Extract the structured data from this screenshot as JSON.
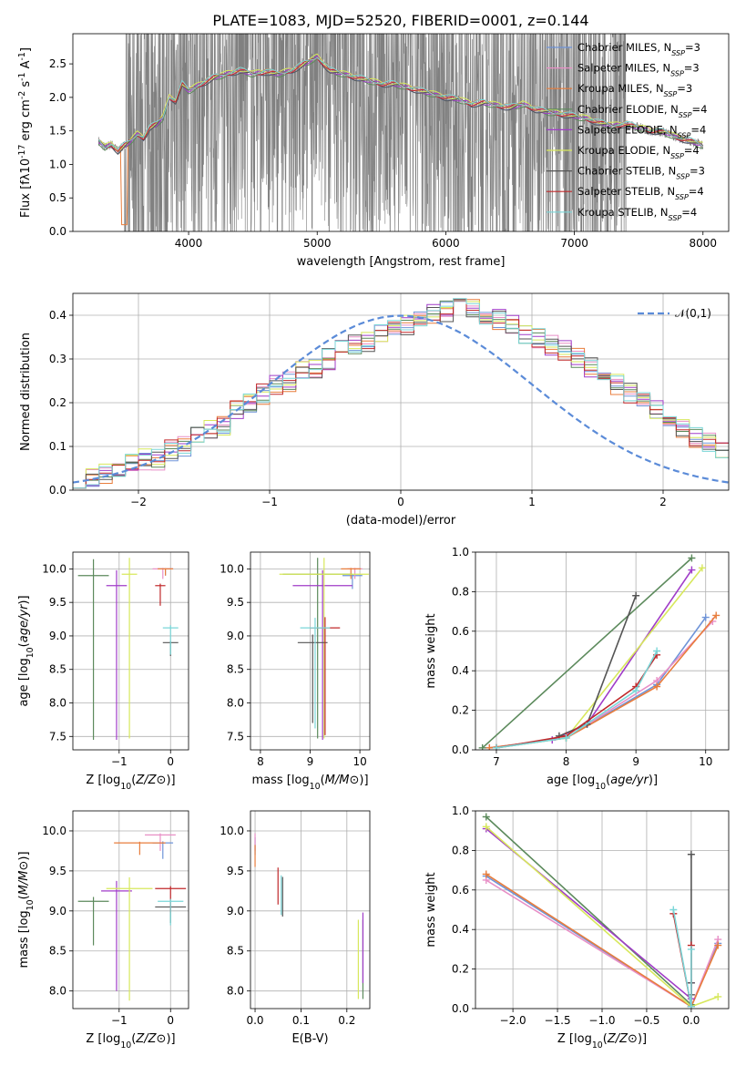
{
  "figure": {
    "title": "PLATE=1083, MJD=52520, FIBERID=0001, z=0.144"
  },
  "colors": {
    "series": [
      "#6f94d8",
      "#e88fc6",
      "#e87d3c",
      "#5c8a5c",
      "#a03cc8",
      "#d7e85c",
      "#555555",
      "#c0282a",
      "#7ad6d8"
    ],
    "data_gray": "#808080",
    "normal_curve": "#5b8bd8",
    "grid": "#b0b0b0"
  },
  "legend": {
    "position": "upper right",
    "entries": [
      {
        "model": "Chabrier MILES",
        "nssp": "3"
      },
      {
        "model": "Salpeter MILES",
        "nssp": "3"
      },
      {
        "model": "Kroupa MILES",
        "nssp": "3"
      },
      {
        "model": "Chabrier ELODIE",
        "nssp": "4"
      },
      {
        "model": "Salpeter ELODIE",
        "nssp": "4"
      },
      {
        "model": "Kroupa ELODIE",
        "nssp": "4"
      },
      {
        "model": "Chabrier STELIB",
        "nssp": "3"
      },
      {
        "model": "Salpeter STELIB",
        "nssp": "4"
      },
      {
        "model": "Kroupa STELIB",
        "nssp": "4"
      }
    ]
  },
  "chart_data": [
    {
      "id": "spectrum",
      "type": "line",
      "xlabel": "wavelength [Angstrom, rest frame]",
      "ylabel": "Flux [f$_\\lambda$10$^{-17}$ erg cm$^{-2}$ s$^{-1}$ A$^{-1}$]",
      "xlim": [
        3100,
        8200
      ],
      "ylim": [
        0,
        2.95
      ],
      "xticks": [
        4000,
        5000,
        6000,
        7000,
        8000
      ],
      "yticks": [
        0.0,
        0.5,
        1.0,
        1.5,
        2.0,
        2.5
      ],
      "grid": false,
      "model_curve": {
        "x": [
          3300,
          3350,
          3400,
          3450,
          3500,
          3550,
          3600,
          3650,
          3700,
          3750,
          3800,
          3850,
          3900,
          3950,
          4000,
          4100,
          4200,
          4300,
          4400,
          4500,
          4600,
          4700,
          4800,
          4900,
          5000,
          5100,
          5200,
          5300,
          5400,
          5500,
          5600,
          5700,
          5800,
          5900,
          6000,
          6100,
          6200,
          6300,
          6400,
          6500,
          6600,
          6700,
          6800,
          6900,
          7000,
          7100,
          7200,
          7300,
          7400,
          7500,
          7600,
          7700,
          7800,
          7900,
          8000
        ],
        "y": [
          1.35,
          1.25,
          1.3,
          1.2,
          1.28,
          1.35,
          1.45,
          1.4,
          1.55,
          1.6,
          1.7,
          2.0,
          1.95,
          2.2,
          2.1,
          2.2,
          2.3,
          2.35,
          2.4,
          2.35,
          2.38,
          2.35,
          2.4,
          2.5,
          2.6,
          2.4,
          2.35,
          2.3,
          2.25,
          2.2,
          2.2,
          2.15,
          2.1,
          2.05,
          2.0,
          1.97,
          1.9,
          1.92,
          1.88,
          1.85,
          1.9,
          1.82,
          1.78,
          1.75,
          1.72,
          1.68,
          1.62,
          1.58,
          1.6,
          1.55,
          1.5,
          1.48,
          1.4,
          1.35,
          1.28
        ]
      },
      "data_range_x": [
        3500,
        7400
      ],
      "series_nssp": [
        "3",
        "3",
        "3",
        "4",
        "4",
        "4",
        "3",
        "4",
        "4"
      ]
    },
    {
      "id": "residuals",
      "type": "area",
      "xlabel": "(data-model)/error",
      "ylabel": "Normed distribution",
      "xlim": [
        -2.5,
        2.5
      ],
      "ylim": [
        0,
        0.45
      ],
      "xticks": [
        -2,
        -1,
        0,
        1,
        2
      ],
      "yticks": [
        0.0,
        0.1,
        0.2,
        0.3,
        0.4
      ],
      "grid": true,
      "legend": "upper right",
      "curve_label": "$\\mathcal{N}(0,1)$",
      "bins_x0": -2.5,
      "bin_width": 0.1,
      "histogram_base": [
        0.02,
        0.03,
        0.04,
        0.05,
        0.06,
        0.07,
        0.07,
        0.09,
        0.1,
        0.12,
        0.14,
        0.15,
        0.18,
        0.2,
        0.22,
        0.24,
        0.25,
        0.27,
        0.28,
        0.3,
        0.32,
        0.33,
        0.34,
        0.36,
        0.37,
        0.38,
        0.39,
        0.4,
        0.41,
        0.42,
        0.42,
        0.4,
        0.39,
        0.38,
        0.36,
        0.35,
        0.33,
        0.32,
        0.3,
        0.28,
        0.26,
        0.24,
        0.22,
        0.2,
        0.18,
        0.16,
        0.14,
        0.12,
        0.11,
        0.09
      ]
    },
    {
      "id": "age_vs_Z",
      "type": "scatter",
      "xlabel": "Z [log$_{10}$($Z/Z_\\odot$)]",
      "ylabel": "age  [log$_{10}$($age/yr$)]",
      "xlim": [
        -1.9,
        0.35
      ],
      "ylim": [
        7.3,
        10.25
      ],
      "xticks": [
        -1,
        0
      ],
      "yticks": [
        7.5,
        8.0,
        8.5,
        9.0,
        9.5,
        10.0
      ],
      "grid": true,
      "points": [
        {
          "x": -0.1,
          "y": 10.0,
          "ex": 0.15,
          "ey": 0.1,
          "s": 0
        },
        {
          "x": -0.15,
          "y": 10.0,
          "ex": 0.2,
          "ey": 0.15,
          "s": 1
        },
        {
          "x": -0.1,
          "y": 10.0,
          "ex": 0.15,
          "ey": 0.1,
          "s": 2
        },
        {
          "x": -1.5,
          "y": 9.9,
          "ex": 0.3,
          "ey": 2.45,
          "s": 3
        },
        {
          "x": -1.05,
          "y": 9.75,
          "ex": 0.2,
          "ey": 2.3,
          "s": 4
        },
        {
          "x": -0.8,
          "y": 9.92,
          "ex": 0.15,
          "ey": 2.45,
          "s": 5
        },
        {
          "x": 0.0,
          "y": 8.9,
          "ex": 0.15,
          "ey": 0.2,
          "s": 6
        },
        {
          "x": -0.2,
          "y": 9.75,
          "ex": 0.1,
          "ey": 0.3,
          "s": 7
        },
        {
          "x": 0.0,
          "y": 9.12,
          "ex": 0.15,
          "ey": 0.4,
          "s": 8
        }
      ]
    },
    {
      "id": "age_vs_mass",
      "type": "scatter",
      "xlabel": "mass [log$_{10}$($M/M_\\odot$)]",
      "ylabel": "",
      "xlim": [
        7.8,
        10.2
      ],
      "ylim": [
        7.3,
        10.25
      ],
      "xticks": [
        8,
        9,
        10
      ],
      "yticks": [
        7.5,
        8.0,
        8.5,
        9.0,
        9.5,
        10.0
      ],
      "grid": true,
      "points": [
        {
          "x": 9.85,
          "y": 9.9,
          "ex": 0.2,
          "ey": 0.2,
          "s": 0
        },
        {
          "x": 9.9,
          "y": 10.0,
          "ex": 0.15,
          "ey": 0.15,
          "s": 1
        },
        {
          "x": 9.82,
          "y": 10.0,
          "ex": 0.2,
          "ey": 0.15,
          "s": 2
        },
        {
          "x": 9.15,
          "y": 9.92,
          "ex": 0.7,
          "ey": 2.45,
          "s": 3
        },
        {
          "x": 9.25,
          "y": 9.75,
          "ex": 0.6,
          "ey": 2.3,
          "s": 4
        },
        {
          "x": 9.28,
          "y": 9.92,
          "ex": 0.9,
          "ey": 2.45,
          "s": 5
        },
        {
          "x": 9.05,
          "y": 8.9,
          "ex": 0.3,
          "ey": 1.2,
          "s": 6
        },
        {
          "x": 9.3,
          "y": 9.12,
          "ex": 0.3,
          "ey": 1.6,
          "s": 7
        },
        {
          "x": 9.1,
          "y": 9.12,
          "ex": 0.3,
          "ey": 1.5,
          "s": 8
        }
      ]
    },
    {
      "id": "weight_vs_age",
      "type": "line",
      "xlabel": "age  [log$_{10}$($age/yr$)]",
      "ylabel": "mass weight",
      "xlim": [
        6.7,
        10.33
      ],
      "ylim": [
        0,
        1
      ],
      "xticks": [
        7,
        8,
        9,
        10
      ],
      "yticks": [
        0.0,
        0.2,
        0.4,
        0.6,
        0.8,
        1.0
      ],
      "grid": true,
      "series": [
        {
          "x": [
            6.9,
            8.0,
            9.3,
            10.0
          ],
          "y": [
            0.01,
            0.06,
            0.33,
            0.67
          ]
        },
        {
          "x": [
            6.9,
            8.0,
            9.3,
            10.1
          ],
          "y": [
            0.01,
            0.06,
            0.35,
            0.65
          ]
        },
        {
          "x": [
            6.9,
            8.0,
            9.3,
            10.15
          ],
          "y": [
            0.01,
            0.06,
            0.32,
            0.68
          ]
        },
        {
          "x": [
            6.8,
            9.8
          ],
          "y": [
            0.01,
            0.97
          ]
        },
        {
          "x": [
            7.0,
            7.8,
            8.3,
            9.8
          ],
          "y": [
            0.01,
            0.05,
            0.13,
            0.91
          ]
        },
        {
          "x": [
            7.0,
            8.0,
            9.95
          ],
          "y": [
            0.01,
            0.06,
            0.92
          ]
        },
        {
          "x": [
            7.9,
            8.3,
            9.0
          ],
          "y": [
            0.07,
            0.13,
            0.78
          ]
        },
        {
          "x": [
            7.0,
            8.0,
            9.0,
            9.3
          ],
          "y": [
            0.01,
            0.07,
            0.32,
            0.48
          ]
        },
        {
          "x": [
            7.0,
            8.0,
            9.0,
            9.3
          ],
          "y": [
            0.01,
            0.06,
            0.3,
            0.5
          ]
        }
      ]
    },
    {
      "id": "mass_vs_Z",
      "type": "scatter",
      "xlabel": "Z [log$_{10}$($Z/Z_\\odot$)]",
      "ylabel": "mass [log$_{10}$($M/M_\\odot$)]",
      "xlim": [
        -1.9,
        0.35
      ],
      "ylim": [
        7.78,
        10.25
      ],
      "xticks": [
        -1,
        0
      ],
      "yticks": [
        8.0,
        8.5,
        9.0,
        9.5,
        10.0
      ],
      "grid": true,
      "points": [
        {
          "x": -0.15,
          "y": 9.85,
          "ex": 0.2,
          "ey": 0.2,
          "s": 0
        },
        {
          "x": -0.2,
          "y": 9.95,
          "ex": 0.3,
          "ey": 0.2,
          "s": 1
        },
        {
          "x": -0.6,
          "y": 9.85,
          "ex": 0.5,
          "ey": 0.15,
          "s": 2
        },
        {
          "x": -1.5,
          "y": 9.12,
          "ex": 0.3,
          "ey": 0.55,
          "s": 3
        },
        {
          "x": -1.05,
          "y": 9.25,
          "ex": 0.3,
          "ey": 1.25,
          "s": 4
        },
        {
          "x": -0.8,
          "y": 9.28,
          "ex": 0.45,
          "ey": 1.4,
          "s": 5
        },
        {
          "x": 0.0,
          "y": 9.05,
          "ex": 0.3,
          "ey": 0.2,
          "s": 6
        },
        {
          "x": 0.0,
          "y": 9.28,
          "ex": 0.3,
          "ey": 0.3,
          "s": 7
        },
        {
          "x": 0.0,
          "y": 9.12,
          "ex": 0.25,
          "ey": 0.3,
          "s": 8
        }
      ]
    },
    {
      "id": "mass_vs_ebv",
      "type": "scatter",
      "xlabel": "E(B-V)",
      "ylabel": "",
      "xlim": [
        -0.01,
        0.25
      ],
      "ylim": [
        7.78,
        10.25
      ],
      "xticks": [
        0.0,
        0.1,
        0.2
      ],
      "yticks": [
        8.0,
        8.5,
        9.0,
        9.5,
        10.0
      ],
      "grid": true,
      "points": [
        {
          "x": 0.0,
          "y": 9.9,
          "ex": 0.0,
          "ey": 0.2,
          "s": 0
        },
        {
          "x": 0.0,
          "y": 9.95,
          "ex": 0.0,
          "ey": 0.2,
          "s": 1
        },
        {
          "x": 0.0,
          "y": 9.8,
          "ex": 0.0,
          "ey": 0.25,
          "s": 2
        },
        {
          "x": 0.235,
          "y": 8.8,
          "ex": 0.0,
          "ey": 0.9,
          "s": 3
        },
        {
          "x": 0.235,
          "y": 8.9,
          "ex": 0.0,
          "ey": 0.8,
          "s": 4
        },
        {
          "x": 0.225,
          "y": 8.8,
          "ex": 0.0,
          "ey": 0.9,
          "s": 5
        },
        {
          "x": 0.06,
          "y": 9.38,
          "ex": 0.0,
          "ey": 0.45,
          "s": 6
        },
        {
          "x": 0.05,
          "y": 9.5,
          "ex": 0.0,
          "ey": 0.42,
          "s": 7
        },
        {
          "x": 0.057,
          "y": 9.4,
          "ex": 0.0,
          "ey": 0.45,
          "s": 8
        }
      ]
    },
    {
      "id": "weight_vs_Z",
      "type": "line",
      "xlabel": "Z [log$_{10}$($Z/Z_\\odot$)]",
      "ylabel": "mass weight",
      "xlim": [
        -2.42,
        0.42
      ],
      "ylim": [
        0,
        1
      ],
      "xticks": [
        -2.0,
        -1.5,
        -1.0,
        -0.5,
        0.0
      ],
      "yticks": [
        0.0,
        0.2,
        0.4,
        0.6,
        0.8,
        1.0
      ],
      "grid": true,
      "series": [
        {
          "x": [
            -2.3,
            0.0,
            0.3
          ],
          "y": [
            0.67,
            0.01,
            0.33
          ]
        },
        {
          "x": [
            -2.3,
            0.0,
            0.3
          ],
          "y": [
            0.65,
            0.01,
            0.35
          ]
        },
        {
          "x": [
            -2.3,
            0.0,
            0.3
          ],
          "y": [
            0.68,
            0.01,
            0.32
          ]
        },
        {
          "x": [
            -2.3,
            0.0
          ],
          "y": [
            0.97,
            0.02
          ]
        },
        {
          "x": [
            -2.3,
            0.0,
            0.0
          ],
          "y": [
            0.91,
            0.05,
            0.13
          ]
        },
        {
          "x": [
            -2.3,
            0.0,
            0.3
          ],
          "y": [
            0.92,
            0.01,
            0.06
          ]
        },
        {
          "x": [
            0.0,
            0.0,
            0.0
          ],
          "y": [
            0.78,
            0.13,
            0.07
          ]
        },
        {
          "x": [
            -0.2,
            0.0,
            0.0
          ],
          "y": [
            0.48,
            0.01,
            0.32
          ]
        },
        {
          "x": [
            -0.2,
            0.0,
            0.0
          ],
          "y": [
            0.5,
            0.01,
            0.3
          ]
        }
      ]
    }
  ]
}
